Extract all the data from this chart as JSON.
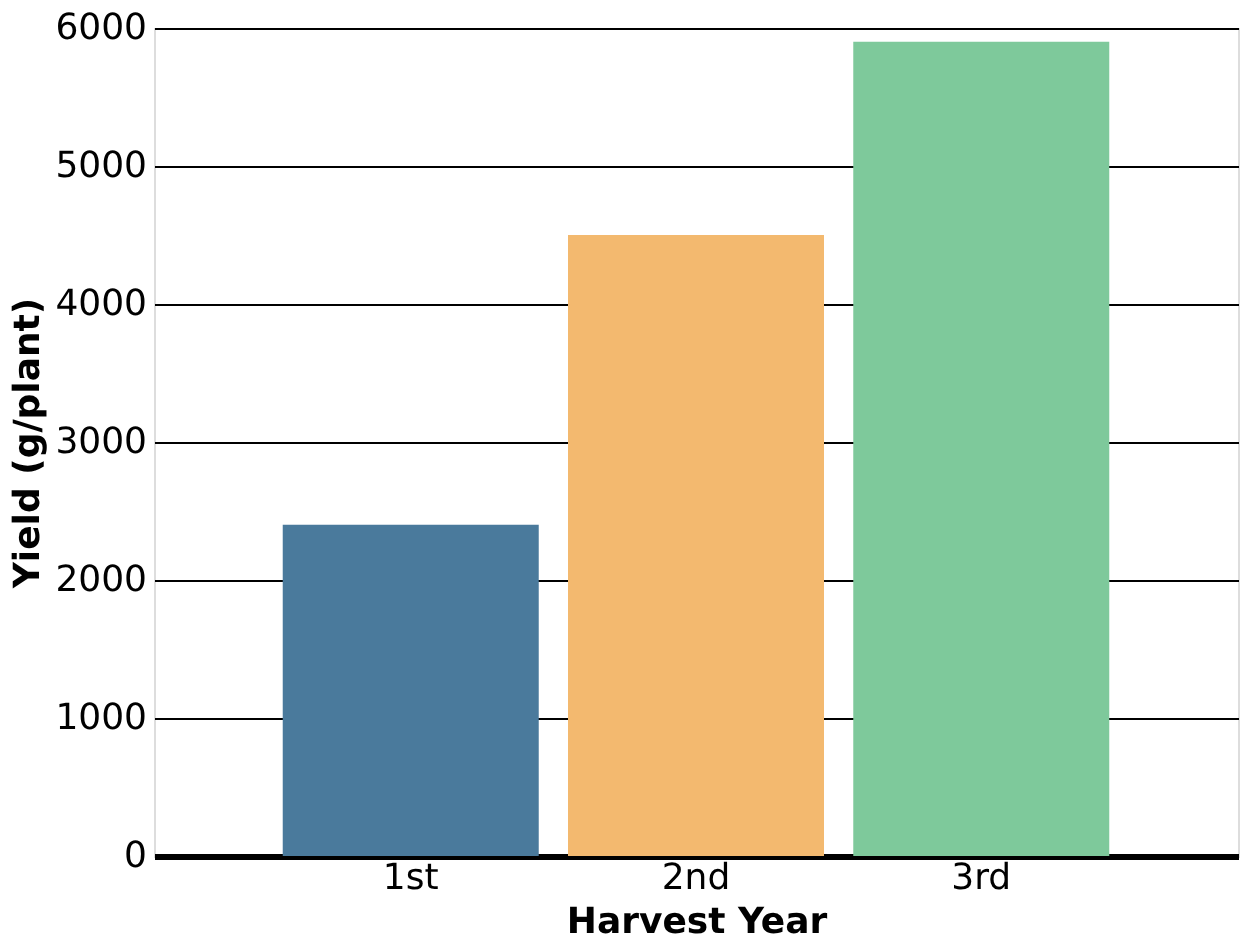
{
  "chart_data": {
    "type": "bar",
    "xlabel": "Harvest Year",
    "ylabel": "Yield (g/plant)",
    "categories": [
      "1st",
      "2nd",
      "3rd"
    ],
    "values": [
      2400,
      4500,
      5900
    ],
    "colors": [
      "#4a7a9c",
      "#f3b96f",
      "#7ec99b"
    ],
    "ylim": [
      0,
      6000
    ],
    "yticks": [
      0,
      1000,
      2000,
      3000,
      4000,
      5000,
      6000
    ],
    "grid": "y"
  }
}
